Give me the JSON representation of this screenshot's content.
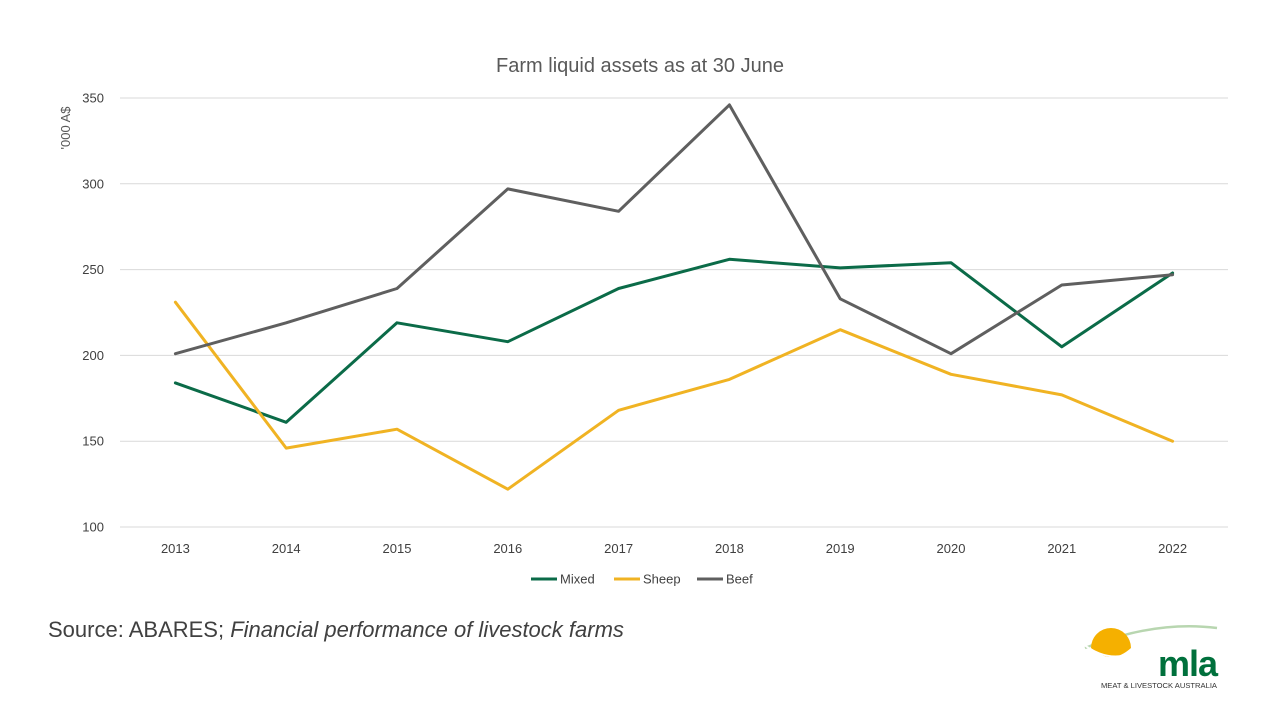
{
  "chart_data": {
    "type": "line",
    "title": "Farm liquid assets as at 30 June",
    "ylabel": "'000 A$",
    "xlabel": "",
    "ylim": [
      100,
      350
    ],
    "yticks": [
      100,
      150,
      200,
      250,
      300,
      350
    ],
    "grid": true,
    "legend_position": "bottom",
    "categories": [
      "2013",
      "2014",
      "2015",
      "2016",
      "2017",
      "2018",
      "2019",
      "2020",
      "2021",
      "2022"
    ],
    "series": [
      {
        "name": "Mixed",
        "color": "#0b6b48",
        "values": [
          184,
          161,
          219,
          208,
          239,
          256,
          251,
          254,
          205,
          248
        ]
      },
      {
        "name": "Sheep",
        "color": "#f0b323",
        "values": [
          231,
          146,
          157,
          122,
          168,
          186,
          215,
          189,
          177,
          150
        ]
      },
      {
        "name": "Beef",
        "color": "#5f5f5f",
        "values": [
          201,
          219,
          239,
          297,
          284,
          346,
          233,
          201,
          241,
          247
        ]
      }
    ]
  },
  "source": {
    "prefix": "Source: ABARES; ",
    "publication": "Financial performance of livestock farms"
  },
  "logo": {
    "name": "mla",
    "tagline": "MEAT & LIVESTOCK AUSTRALIA",
    "colors": {
      "green": "#00703c",
      "yellow": "#f5b000",
      "arc": "#b8d6b0"
    }
  }
}
